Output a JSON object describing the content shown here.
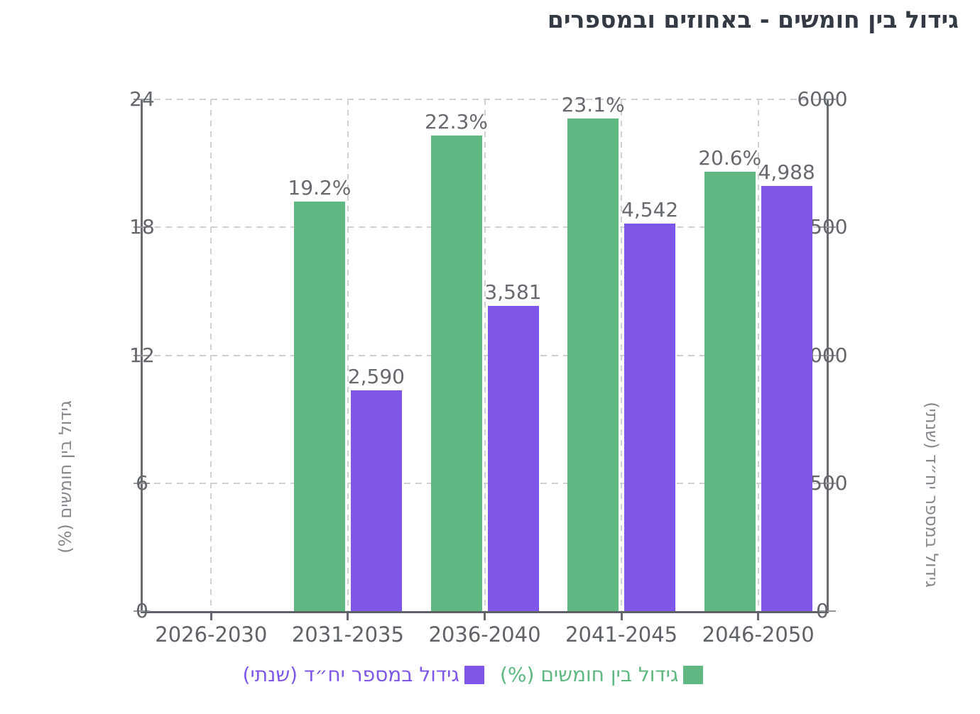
{
  "title": "גידול בין חומשים - באחוזים ובמספרים",
  "chart_data": {
    "type": "bar",
    "direction": "rtl",
    "title": "גידול בין חומשים - באחוזים ובמספרים",
    "categories": [
      "2026-2030",
      "2031-2035",
      "2036-2040",
      "2041-2045",
      "2046-2050"
    ],
    "series": [
      {
        "name": "גידול בין חומשים (%)",
        "axis": "left",
        "color": "#5fb882",
        "values": [
          null,
          19.2,
          22.3,
          23.1,
          20.6
        ],
        "labels": [
          "",
          "19.2%",
          "22.3%",
          "23.1%",
          "20.6%"
        ]
      },
      {
        "name": "גידול במספר יח״ד (שנתי)",
        "axis": "right",
        "color": "#7f57e8",
        "values": [
          null,
          2590,
          3581,
          4542,
          4988
        ],
        "labels": [
          "",
          "2,590",
          "3,581",
          "4,542",
          "4,988"
        ]
      }
    ],
    "left_axis": {
      "title": "גידול בין חומשים (%)",
      "range": [
        0,
        24
      ],
      "tick_values": [
        0,
        6,
        12,
        18,
        24
      ],
      "tick_labels": [
        "0",
        "6",
        "12",
        "18",
        "24"
      ]
    },
    "right_axis": {
      "title": "גידול במספר יח״ד (שנתי)",
      "range": [
        0,
        6000
      ],
      "tick_values": [
        0,
        1500,
        3000,
        4500,
        6000
      ],
      "tick_labels": [
        "0",
        "1500",
        "3000",
        "4500",
        "6000"
      ]
    },
    "grid": true,
    "legend_position": "bottom",
    "colors": {
      "percent_series": "#5fb882",
      "units_series": "#7f57e8",
      "title_text": "#333a44",
      "tick_text": "#63676c",
      "axis_title_text": "#85888d",
      "gridline": "#d0d1d3"
    }
  }
}
